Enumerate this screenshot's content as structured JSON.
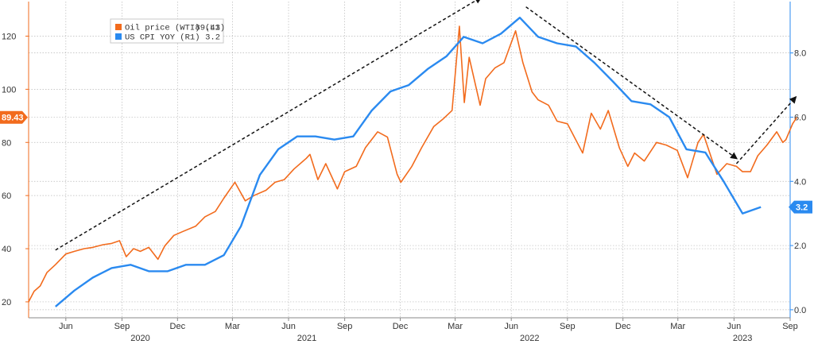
{
  "chart_data": {
    "type": "line",
    "grid": true,
    "legend_position": "top-left",
    "x_range": [
      "2020-04-01",
      "2023-09-01"
    ],
    "x_tick_labels": [
      "Jun",
      "Sep",
      "Dec",
      "Mar",
      "Jun",
      "Sep",
      "Dec",
      "Mar",
      "Jun",
      "Sep",
      "Dec",
      "Mar",
      "Jun",
      "Sep"
    ],
    "x_ticks": [
      "2020-06-01",
      "2020-09-01",
      "2020-12-01",
      "2021-03-01",
      "2021-06-01",
      "2021-09-01",
      "2021-12-01",
      "2022-03-01",
      "2022-06-01",
      "2022-09-01",
      "2022-12-01",
      "2023-03-01",
      "2023-06-01",
      "2023-09-01"
    ],
    "year_labels": [
      {
        "label": "2020",
        "date": "2020-10-01"
      },
      {
        "label": "2021",
        "date": "2021-07-01"
      },
      {
        "label": "2022",
        "date": "2022-07-01"
      },
      {
        "label": "2023",
        "date": "2023-06-15"
      }
    ],
    "left_axis": {
      "ylim": [
        14,
        133
      ],
      "ticks": [
        20,
        40,
        60,
        80,
        100,
        120
      ],
      "color": "#f26b1d"
    },
    "right_axis": {
      "ylim": [
        -0.25,
        9.6
      ],
      "ticks": [
        0.0,
        2.0,
        4.0,
        6.0,
        8.0
      ],
      "tick_labels": [
        "0.0",
        "2.0",
        "4.0",
        "6.0",
        "8.0"
      ],
      "color": "#2a8af0"
    },
    "series": [
      {
        "name": "Oil price (WTI) (L1)",
        "legend_value": "89.43",
        "last_value_badge": "89.43",
        "axis": "left",
        "color": "#f26b1d",
        "points": [
          [
            "2020-04-01",
            20
          ],
          [
            "2020-04-10",
            24
          ],
          [
            "2020-04-20",
            26
          ],
          [
            "2020-05-01",
            31
          ],
          [
            "2020-05-15",
            34
          ],
          [
            "2020-06-01",
            38
          ],
          [
            "2020-06-15",
            39
          ],
          [
            "2020-07-01",
            40
          ],
          [
            "2020-07-15",
            40.5
          ],
          [
            "2020-08-01",
            41.5
          ],
          [
            "2020-08-15",
            42
          ],
          [
            "2020-08-28",
            43
          ],
          [
            "2020-09-08",
            37
          ],
          [
            "2020-09-20",
            40
          ],
          [
            "2020-10-01",
            39
          ],
          [
            "2020-10-15",
            40.5
          ],
          [
            "2020-10-30",
            36
          ],
          [
            "2020-11-10",
            41
          ],
          [
            "2020-11-25",
            45
          ],
          [
            "2020-12-10",
            46.5
          ],
          [
            "2020-12-31",
            48.5
          ],
          [
            "2021-01-15",
            52
          ],
          [
            "2021-02-01",
            54
          ],
          [
            "2021-02-15",
            59
          ],
          [
            "2021-03-05",
            65
          ],
          [
            "2021-03-22",
            58
          ],
          [
            "2021-04-05",
            60
          ],
          [
            "2021-04-25",
            62
          ],
          [
            "2021-05-10",
            65
          ],
          [
            "2021-05-25",
            66
          ],
          [
            "2021-06-10",
            70
          ],
          [
            "2021-06-30",
            74
          ],
          [
            "2021-07-06",
            75.5
          ],
          [
            "2021-07-19",
            66
          ],
          [
            "2021-08-01",
            72
          ],
          [
            "2021-08-20",
            62.5
          ],
          [
            "2021-09-01",
            69
          ],
          [
            "2021-09-20",
            71
          ],
          [
            "2021-10-05",
            78
          ],
          [
            "2021-10-25",
            84
          ],
          [
            "2021-11-10",
            82
          ],
          [
            "2021-11-26",
            68
          ],
          [
            "2021-12-02",
            65
          ],
          [
            "2021-12-20",
            71
          ],
          [
            "2022-01-05",
            78
          ],
          [
            "2022-01-25",
            86
          ],
          [
            "2022-02-10",
            89
          ],
          [
            "2022-02-24",
            92
          ],
          [
            "2022-03-08",
            123.7
          ],
          [
            "2022-03-16",
            95
          ],
          [
            "2022-03-24",
            112
          ],
          [
            "2022-04-11",
            94
          ],
          [
            "2022-04-20",
            104
          ],
          [
            "2022-05-05",
            108
          ],
          [
            "2022-05-20",
            110
          ],
          [
            "2022-06-08",
            122
          ],
          [
            "2022-06-20",
            110
          ],
          [
            "2022-07-05",
            99
          ],
          [
            "2022-07-15",
            96
          ],
          [
            "2022-08-01",
            94
          ],
          [
            "2022-08-15",
            88
          ],
          [
            "2022-09-01",
            87
          ],
          [
            "2022-09-26",
            76
          ],
          [
            "2022-10-10",
            91
          ],
          [
            "2022-10-25",
            85
          ],
          [
            "2022-11-07",
            92
          ],
          [
            "2022-11-25",
            78
          ],
          [
            "2022-12-09",
            71
          ],
          [
            "2022-12-20",
            76
          ],
          [
            "2023-01-05",
            73
          ],
          [
            "2023-01-25",
            80
          ],
          [
            "2023-02-10",
            79
          ],
          [
            "2023-02-28",
            77
          ],
          [
            "2023-03-17",
            66.7
          ],
          [
            "2023-04-03",
            80
          ],
          [
            "2023-04-12",
            83
          ],
          [
            "2023-05-04",
            68
          ],
          [
            "2023-05-20",
            72
          ],
          [
            "2023-06-05",
            71
          ],
          [
            "2023-06-15",
            69
          ],
          [
            "2023-06-28",
            69
          ],
          [
            "2023-07-10",
            75
          ],
          [
            "2023-07-25",
            79
          ],
          [
            "2023-08-10",
            84
          ],
          [
            "2023-08-20",
            80
          ],
          [
            "2023-08-25",
            81
          ],
          [
            "2023-09-05",
            87
          ],
          [
            "2023-09-12",
            89.43
          ]
        ]
      },
      {
        "name": "US CPI YOY (R1)",
        "legend_value": "3.2",
        "last_value_badge": "3.2",
        "axis": "right",
        "color": "#2a8af0",
        "points": [
          [
            "2020-05-15",
            0.1
          ],
          [
            "2020-06-15",
            0.6
          ],
          [
            "2020-07-15",
            1.0
          ],
          [
            "2020-08-15",
            1.3
          ],
          [
            "2020-09-15",
            1.4
          ],
          [
            "2020-10-15",
            1.2
          ],
          [
            "2020-11-15",
            1.2
          ],
          [
            "2020-12-15",
            1.4
          ],
          [
            "2021-01-15",
            1.4
          ],
          [
            "2021-02-15",
            1.7
          ],
          [
            "2021-03-15",
            2.6
          ],
          [
            "2021-04-15",
            4.2
          ],
          [
            "2021-05-15",
            5.0
          ],
          [
            "2021-06-15",
            5.4
          ],
          [
            "2021-07-15",
            5.4
          ],
          [
            "2021-08-15",
            5.3
          ],
          [
            "2021-09-15",
            5.4
          ],
          [
            "2021-10-15",
            6.2
          ],
          [
            "2021-11-15",
            6.8
          ],
          [
            "2021-12-15",
            7.0
          ],
          [
            "2022-01-15",
            7.5
          ],
          [
            "2022-02-15",
            7.9
          ],
          [
            "2022-03-15",
            8.5
          ],
          [
            "2022-04-15",
            8.3
          ],
          [
            "2022-05-15",
            8.6
          ],
          [
            "2022-06-15",
            9.1
          ],
          [
            "2022-07-15",
            8.5
          ],
          [
            "2022-08-15",
            8.3
          ],
          [
            "2022-09-15",
            8.2
          ],
          [
            "2022-10-15",
            7.7
          ],
          [
            "2022-11-15",
            7.1
          ],
          [
            "2022-12-15",
            6.5
          ],
          [
            "2023-01-15",
            6.4
          ],
          [
            "2023-02-15",
            6.0
          ],
          [
            "2023-03-15",
            5.0
          ],
          [
            "2023-04-15",
            4.9
          ],
          [
            "2023-05-15",
            4.0
          ],
          [
            "2023-06-15",
            3.0
          ],
          [
            "2023-07-15",
            3.2
          ]
        ]
      }
    ],
    "annotations": [
      {
        "type": "dashed-arrow",
        "from": [
          "2020-05-15",
          39.5
        ],
        "to": [
          "2022-04-12",
          134.5
        ]
      },
      {
        "type": "dashed-arrow",
        "from": [
          "2022-06-25",
          131
        ],
        "to": [
          "2023-06-05",
          74
        ]
      },
      {
        "type": "dashed-arrow",
        "from": [
          "2023-06-05",
          72
        ],
        "to": [
          "2023-09-10",
          97
        ]
      }
    ]
  }
}
